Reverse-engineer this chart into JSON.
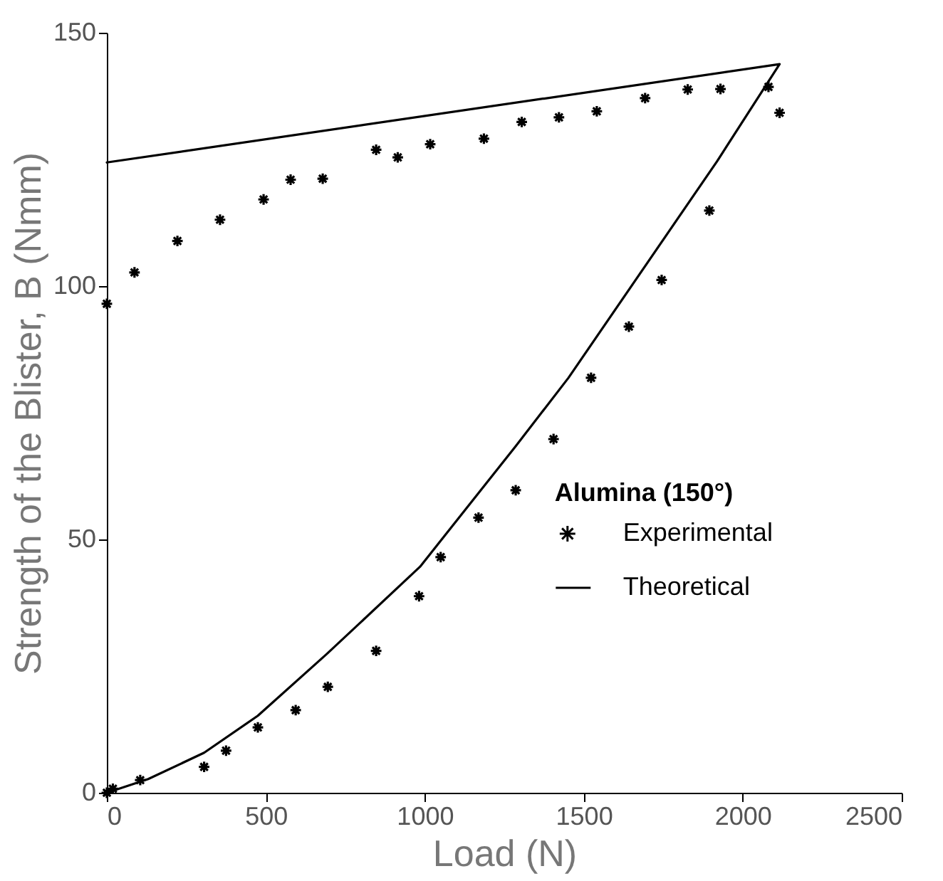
{
  "chart_data": {
    "type": "scatter",
    "xlabel": "Load (N)",
    "ylabel": "Strength of the Blister, B (Nmm)",
    "legend_title": "Alumina (150°)",
    "legend": "right",
    "xlim": [
      0,
      2500
    ],
    "xticks": [
      0,
      500,
      1000,
      1500,
      2000,
      2500
    ],
    "ylim": [
      0,
      150
    ],
    "yticks": [
      0,
      50,
      100,
      150
    ],
    "series": [
      {
        "name": "Experimental",
        "marker": "cross",
        "color": "#000000",
        "x": [
          0,
          87,
          222,
          356,
          493,
          578,
          679,
          847,
          915,
          1017,
          1186,
          1305,
          1422,
          1541,
          1693,
          1827,
          1930,
          2081,
          2116,
          0,
          19,
          105,
          306,
          375,
          475,
          594,
          695,
          847,
          982,
          1050,
          1169,
          1286,
          1405,
          1523,
          1642,
          1745,
          1895
        ],
        "values": [
          96.5,
          102.7,
          108.9,
          113.1,
          117.1,
          121.0,
          121.2,
          126.9,
          125.4,
          128.0,
          129.1,
          132.4,
          133.3,
          134.5,
          137.1,
          138.8,
          138.9,
          139.3,
          134.2,
          0,
          0.8,
          2.5,
          5.1,
          8.3,
          12.9,
          16.3,
          20.9,
          28.0,
          38.8,
          46.5,
          54.3,
          59.7,
          69.8,
          81.9,
          92.0,
          101.2,
          114.9
        ]
      },
      {
        "name": "Theoretical",
        "type": "line",
        "color": "#000000",
        "x": [
          0,
          130,
          306,
          475,
          692,
          985,
          1286,
          1452,
          1919,
          2116,
          0
        ],
        "values": [
          0,
          2.7,
          7.9,
          15.2,
          27.4,
          44.6,
          68.4,
          81.9,
          124.6,
          143.8,
          124.4
        ]
      }
    ]
  }
}
